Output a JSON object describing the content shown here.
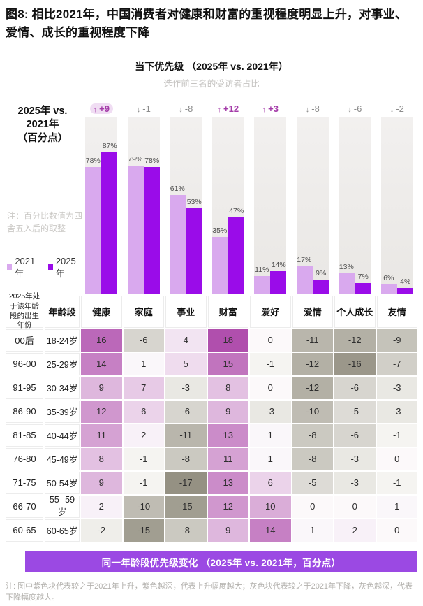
{
  "title": "图8: 相比2021年，中国消费者对健康和财富的重视程度明显上升，对事业、爱情、成长的重视程度下降",
  "chart": {
    "title": "当下优先级 （2025年 vs. 2021年）",
    "subtitle": "选作前三名的受访者占比",
    "axis_label_line1": "2025年 vs. 2021年",
    "axis_label_line2": "（百分点）",
    "note": "注：百分比数值为四舍五入后的取整",
    "legend": [
      {
        "label": "2021年",
        "color": "#d9a9ee"
      },
      {
        "label": "2025年",
        "color": "#9a0ce9"
      }
    ]
  },
  "chart_data": {
    "type": "bar",
    "categories": [
      "健康",
      "家庭",
      "事业",
      "财富",
      "爱好",
      "爱情",
      "个人成长",
      "友情"
    ],
    "series": [
      {
        "name": "2021年",
        "values": [
          78,
          79,
          61,
          35,
          11,
          17,
          13,
          6
        ]
      },
      {
        "name": "2025年",
        "values": [
          87,
          78,
          53,
          47,
          14,
          9,
          7,
          4
        ]
      }
    ],
    "changes": [
      9,
      -1,
      -8,
      12,
      3,
      -8,
      -6,
      -2
    ],
    "highlight_change_index": 0,
    "unit": "%",
    "ylim": [
      0,
      100
    ],
    "ylabel": "选作前三名的受访者占比",
    "legend_position": "left"
  },
  "table": {
    "header_col1": "2025年处于该年龄段的出生年份",
    "header_col2": "年龄段",
    "columns": [
      "健康",
      "家庭",
      "事业",
      "财富",
      "爱好",
      "爱情",
      "个人成长",
      "友情"
    ],
    "rows": [
      {
        "cohort": "00后",
        "age": "18-24岁",
        "values": [
          16,
          -6,
          4,
          18,
          0,
          -11,
          -12,
          -9
        ]
      },
      {
        "cohort": "96-00",
        "age": "25-29岁",
        "values": [
          14,
          1,
          5,
          15,
          -1,
          -12,
          -16,
          -7
        ]
      },
      {
        "cohort": "91-95",
        "age": "30-34岁",
        "values": [
          9,
          7,
          -3,
          8,
          0,
          -12,
          -6,
          -3
        ]
      },
      {
        "cohort": "86-90",
        "age": "35-39岁",
        "values": [
          12,
          6,
          -6,
          9,
          -3,
          -10,
          -5,
          -3
        ]
      },
      {
        "cohort": "81-85",
        "age": "40-44岁",
        "values": [
          11,
          2,
          -11,
          13,
          1,
          -8,
          -6,
          -1
        ]
      },
      {
        "cohort": "76-80",
        "age": "45-49岁",
        "values": [
          8,
          -1,
          -8,
          11,
          1,
          -8,
          -3,
          0
        ]
      },
      {
        "cohort": "71-75",
        "age": "50-54岁",
        "values": [
          9,
          -1,
          -17,
          13,
          6,
          -5,
          -3,
          -1
        ]
      },
      {
        "cohort": "66-70",
        "age": "55--59岁",
        "values": [
          2,
          -10,
          -15,
          12,
          10,
          0,
          0,
          1
        ]
      },
      {
        "cohort": "60-65",
        "age": "60-65岁",
        "values": [
          -2,
          -15,
          -8,
          9,
          14,
          1,
          2,
          0
        ]
      }
    ]
  },
  "banner": "同一年龄段优先级变化 （2025年 vs. 2021年，百分点）",
  "footnote": "注: 图中紫色块代表较之于2021年上升，紫色越深，代表上升幅度越大；灰色块代表较之于2021年下降，灰色越深，代表下降幅度越大。",
  "colors": {
    "bar_2021": "#d9a9ee",
    "bar_2025": "#9a0ce9",
    "change_positive": "#a43ba8",
    "change_negative": "#8c8c8c",
    "cell_purple_max": "#b04fad",
    "cell_gray_max": "#8f8b7c",
    "cell_white": "#fcf9fa",
    "banner_bg": "#9b49e3"
  }
}
